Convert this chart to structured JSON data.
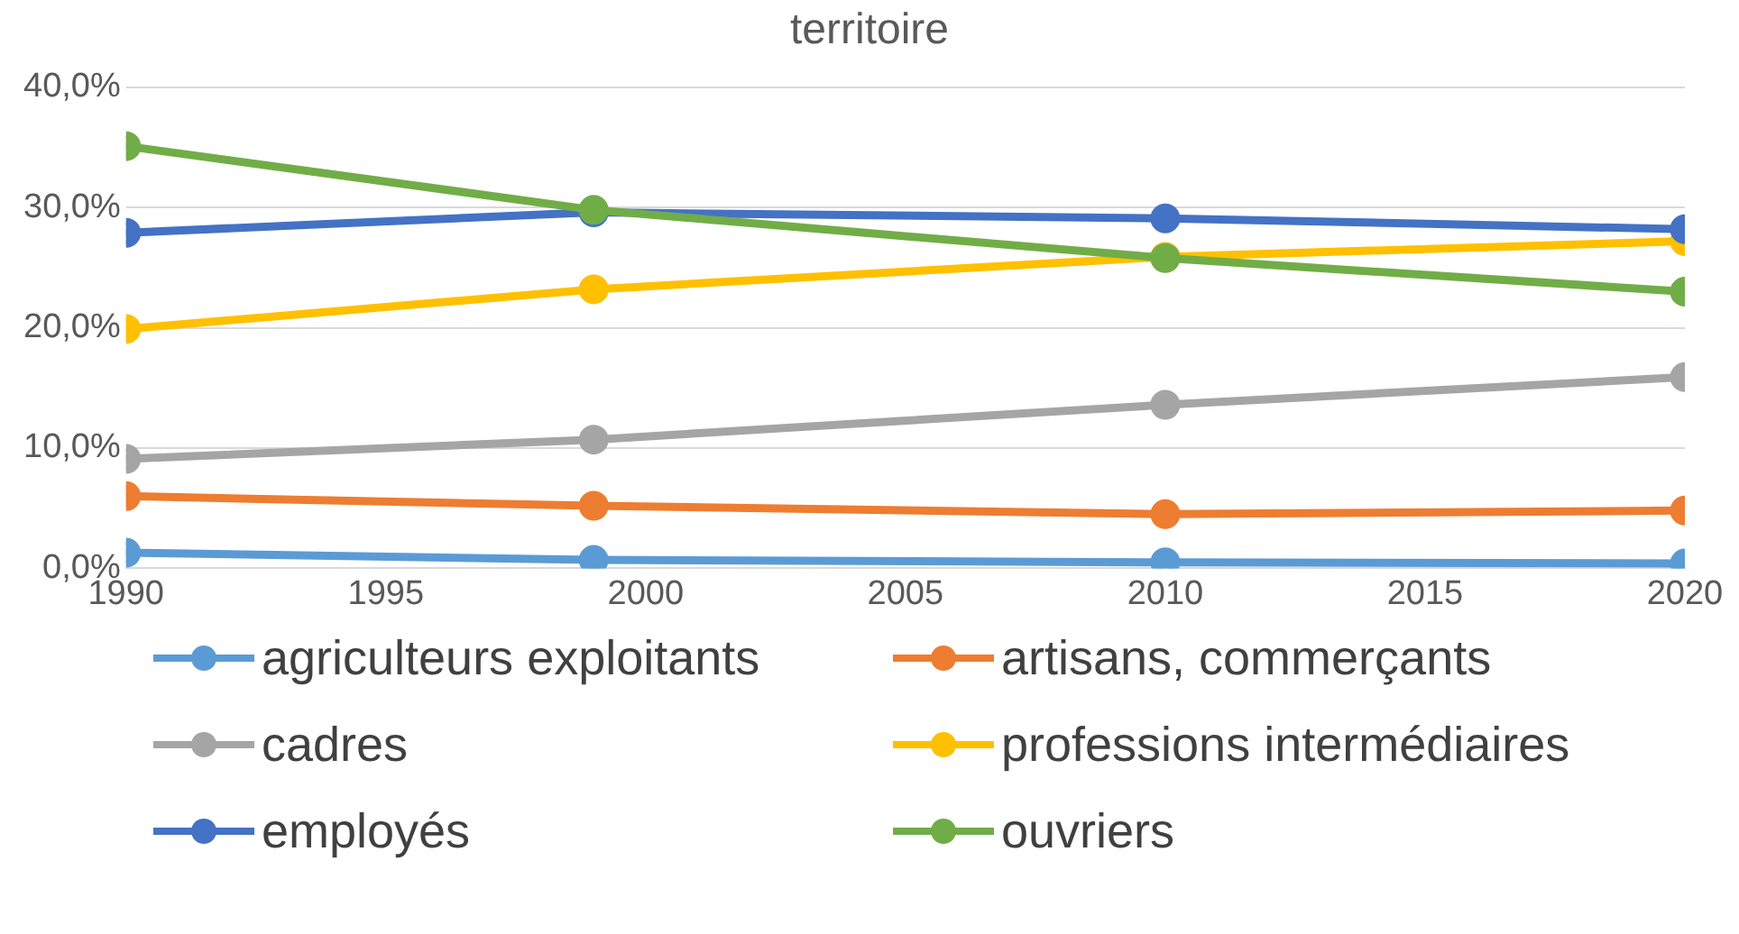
{
  "chart_data": {
    "type": "line",
    "title": "territoire",
    "x": [
      1990,
      1999,
      2010,
      2020
    ],
    "xlim": [
      1990,
      2020
    ],
    "xticks": [
      1990,
      1995,
      2000,
      2005,
      2010,
      2015,
      2020
    ],
    "ylim": [
      0,
      40
    ],
    "yticks": [
      {
        "value": 0,
        "label": "0,0%"
      },
      {
        "value": 10,
        "label": "10,0%"
      },
      {
        "value": 20,
        "label": "20,0%"
      },
      {
        "value": 30,
        "label": "30,0%"
      },
      {
        "value": 40,
        "label": "40,0%"
      }
    ],
    "grid": "y",
    "legend": "bottom",
    "marker": "circle",
    "line_style": "solid",
    "series": [
      {
        "name": "agriculteurs exploitants",
        "color": "#5b9bd5",
        "values": [
          1.3,
          0.7,
          0.5,
          0.4
        ]
      },
      {
        "name": "artisans, commerçants",
        "color": "#ed7d31",
        "values": [
          6.0,
          5.2,
          4.5,
          4.8
        ]
      },
      {
        "name": "cadres",
        "color": "#a5a5a5",
        "values": [
          9.1,
          10.7,
          13.6,
          15.9
        ]
      },
      {
        "name": "professions intermédiaires",
        "color": "#ffc000",
        "values": [
          19.9,
          23.2,
          25.9,
          27.2
        ]
      },
      {
        "name": "employés",
        "color": "#4472c4",
        "values": [
          27.9,
          29.6,
          29.1,
          28.2
        ]
      },
      {
        "name": "ouvriers",
        "color": "#70ad47",
        "values": [
          35.1,
          29.8,
          25.8,
          23.0
        ]
      }
    ]
  }
}
